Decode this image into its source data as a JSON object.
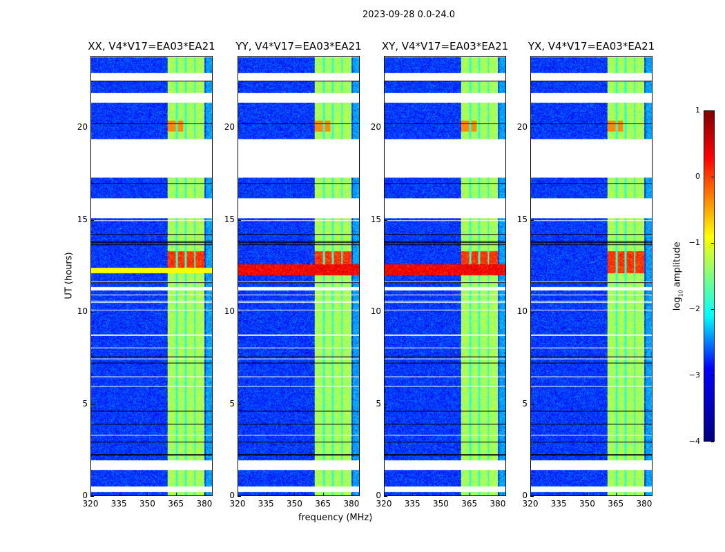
{
  "chart_data": {
    "type": "heatmap",
    "title": "2023-09-28 0.0-24.0",
    "xlabel": "frequency (MHz)",
    "ylabel": "UT (hours)",
    "xlim": [
      320,
      384.4
    ],
    "ylim": [
      0,
      23.9
    ],
    "xticks": [
      "320",
      "335",
      "350",
      "365",
      "380"
    ],
    "xtick_values": [
      320,
      335,
      350,
      365,
      380
    ],
    "yticks": [
      "0",
      "5",
      "10",
      "15",
      "20"
    ],
    "ytick_values": [
      0,
      5,
      10,
      15,
      20
    ],
    "panels": [
      {
        "title": "XX, V4*V17=EA03*EA21",
        "broadband_rfi": false
      },
      {
        "title": "YY, V4*V17=EA03*EA21",
        "broadband_rfi": true
      },
      {
        "title": "XY, V4*V17=EA03*EA21",
        "broadband_rfi": true
      },
      {
        "title": "YX, V4*V17=EA03*EA21",
        "broadband_rfi": false
      }
    ],
    "flagged_hours": [
      [
        15.1,
        16.2
      ],
      [
        17.3,
        19.4
      ],
      [
        21.4,
        21.9
      ],
      [
        22.6,
        23.0
      ],
      [
        0.2,
        0.5
      ],
      [
        1.4,
        1.9
      ],
      [
        11.2,
        11.35
      ]
    ],
    "rfi_band_mhz": [
      360.7,
      380.4
    ],
    "rfi_gaps_mhz": [
      365.6,
      370.5,
      375.3
    ],
    "strong_rfi_hours": [
      12.1,
      13.3
    ],
    "background_log_amplitude": -3.1,
    "band_log_amplitude": -1.3,
    "colorbar": {
      "label_prefix": "log",
      "label_sub": "10",
      "label_suffix": " amplitude",
      "ticks": [
        "1",
        "0",
        "−1",
        "−2",
        "−3",
        "−4"
      ],
      "tick_values": [
        1,
        0,
        -1,
        -2,
        -3,
        -4
      ],
      "range": [
        -4,
        1
      ],
      "colormap": "jet"
    }
  }
}
